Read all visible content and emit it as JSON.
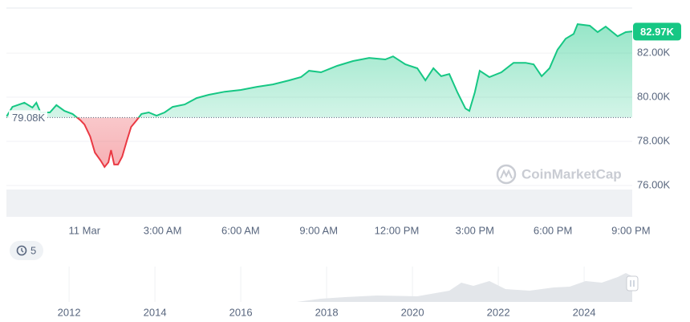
{
  "chart_data": {
    "type": "line",
    "x": [
      -2.99,
      -2.77,
      -2.31,
      -2.0,
      -1.85,
      -1.69,
      -1.33,
      -1.08,
      -0.77,
      -0.46,
      -0.15,
      0,
      0.22,
      0.4,
      0.62,
      0.77,
      0.92,
      1.02,
      1.14,
      1.29,
      1.45,
      1.63,
      1.79,
      2.0,
      2.19,
      2.47,
      2.77,
      3.08,
      3.39,
      3.85,
      4.31,
      4.78,
      5.39,
      6.01,
      6.63,
      7.24,
      7.86,
      8.32,
      8.63,
      9.09,
      9.71,
      10.32,
      10.94,
      11.56,
      11.86,
      12.33,
      12.79,
      13.1,
      13.41,
      13.71,
      14.02,
      14.33,
      14.64,
      14.79,
      15.0,
      15.19,
      15.56,
      16.02,
      16.49,
      16.95,
      17.26,
      17.57,
      17.87,
      18.18,
      18.49,
      18.8,
      18.95,
      19.42,
      19.72,
      20.03,
      20.49,
      20.8,
      21.05
    ],
    "values": [
      79.13,
      79.56,
      79.75,
      79.53,
      79.75,
      79.31,
      79.31,
      79.64,
      79.38,
      79.24,
      78.95,
      78.76,
      78.22,
      77.49,
      77.13,
      76.84,
      77.05,
      77.6,
      76.95,
      76.95,
      77.31,
      78.04,
      78.65,
      78.95,
      79.24,
      79.31,
      79.16,
      79.31,
      79.56,
      79.67,
      79.96,
      80.11,
      80.25,
      80.33,
      80.47,
      80.58,
      80.76,
      80.91,
      81.2,
      81.13,
      81.42,
      81.64,
      81.78,
      81.71,
      81.85,
      81.49,
      81.31,
      80.76,
      81.31,
      80.95,
      81.05,
      80.22,
      79.49,
      79.38,
      80.22,
      81.2,
      80.91,
      81.13,
      81.56,
      81.56,
      81.49,
      80.95,
      81.31,
      82.15,
      82.65,
      82.87,
      83.31,
      83.24,
      82.95,
      83.2,
      82.76,
      82.95,
      82.98
    ],
    "up_color": "#16c784",
    "down_color": "#ea3943",
    "xlim": [
      -3,
      21.05
    ],
    "xticks": [
      {
        "value": 0,
        "label": "11 Mar"
      },
      {
        "value": 3,
        "label": "3:00 AM"
      },
      {
        "value": 6,
        "label": "6:00 AM"
      },
      {
        "value": 9,
        "label": "9:00 AM"
      },
      {
        "value": 12,
        "label": "12:00 PM"
      },
      {
        "value": 15,
        "label": "3:00 PM"
      },
      {
        "value": 18,
        "label": "6:00 PM"
      },
      {
        "value": 21,
        "label": "9:00 PM"
      }
    ],
    "ylim": [
      74.58,
      84.04
    ],
    "yticks": [
      {
        "value": 76,
        "label": "76.00K"
      },
      {
        "value": 78,
        "label": "78.00K"
      },
      {
        "value": 80,
        "label": "80.00K"
      },
      {
        "value": 82,
        "label": "82.00K"
      }
    ],
    "baseline": {
      "value": 79.08,
      "label": "79.08K"
    },
    "last_price": {
      "value": 82.97,
      "label": "82.97K"
    },
    "grid": true
  },
  "watermark": "CoinMarketCap",
  "range_button": "5",
  "navigator": {
    "xlim": [
      2010.54,
      2025.12
    ],
    "xticks": [
      2012,
      2014,
      2016,
      2018,
      2020,
      2022,
      2024
    ]
  }
}
